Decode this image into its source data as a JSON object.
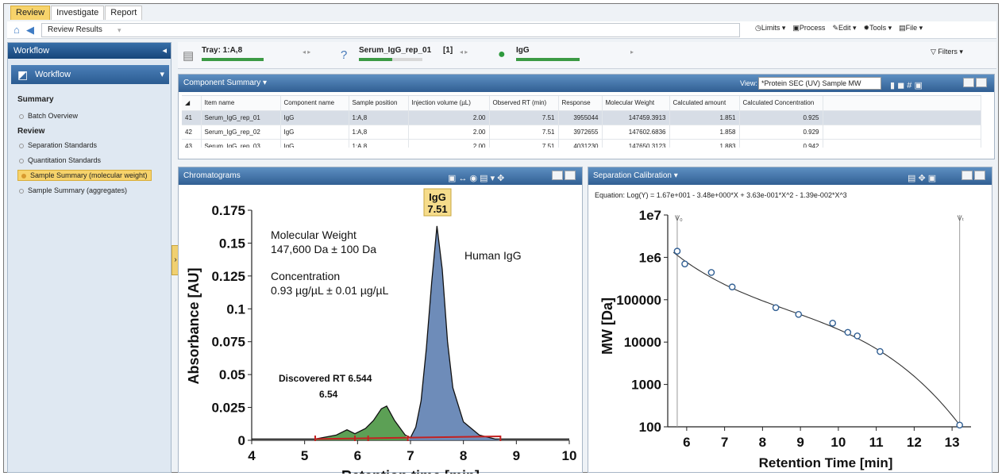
{
  "tabs": [
    "Review",
    "Investigate",
    "Report"
  ],
  "address": "Review Results",
  "top_actions": [
    "Limits",
    "Process",
    "Edit",
    "Tools",
    "File"
  ],
  "left": {
    "panel_title": "Workflow",
    "workflow_label": "Workflow",
    "sections": [
      {
        "title": "Summary",
        "items": [
          "Batch Overview"
        ]
      },
      {
        "title": "Review",
        "items": [
          "Separation Standards",
          "Quantitation Standards",
          "Sample Summary (molecular weight)",
          "Sample Summary (aggregates)"
        ]
      }
    ],
    "active_item": "Sample Summary (molecular weight)"
  },
  "status": {
    "tray": "Tray: 1:A,8",
    "sample": "Serum_IgG_rep_01",
    "sample_count": "[1]",
    "component": "IgG",
    "filters": "Filters"
  },
  "component_summary": {
    "title": "Component Summary",
    "view_label": "View:",
    "view_value": "*Protein SEC (UV) Sample MW",
    "columns": [
      "Item name",
      "Component name",
      "Sample position",
      "Injection volume (µL)",
      "Observed RT (min)",
      "Response",
      "Molecular Weight",
      "Calculated amount",
      "Calculated Concentration"
    ],
    "rows": [
      [
        "41",
        "Serum_IgG_rep_01",
        "IgG",
        "1:A,8",
        "2.00",
        "7.51",
        "3955044",
        "147459.3913",
        "1.851",
        "0.925"
      ],
      [
        "42",
        "Serum_IgG_rep_02",
        "IgG",
        "1:A,8",
        "2.00",
        "7.51",
        "3972655",
        "147602.6836",
        "1.858",
        "0.929"
      ],
      [
        "43",
        "Serum_IgG_rep_03",
        "IgG",
        "1:A,8",
        "2.00",
        "7.51",
        "4031230",
        "147650.3123",
        "1.883",
        "0.942"
      ]
    ]
  },
  "chromatograms": {
    "title": "Chromatograms",
    "peak_label": "IgG",
    "peak_rt": "7.51",
    "annotations": {
      "mw_title": "Molecular Weight",
      "mw_value": "147,600 Da ± 100 Da",
      "conc_title": "Concentration",
      "conc_value": "0.93 µg/µL ± 0.01 µg/µL",
      "species": "Human IgG",
      "discovered": "Discovered RT 6.544",
      "discovered_value": "6.54"
    }
  },
  "calibration": {
    "title": "Separation Calibration",
    "equation": "Equation: Log(Y) = 1.67e+001 - 3.48e+000*X + 3.63e-001*X^2 - 1.39e-002*X^3",
    "v0": "V₀",
    "vt": "Vₜ"
  },
  "chart_data": [
    {
      "type": "line",
      "title": "",
      "xlabel": "Retention time [min]",
      "ylabel": "Absorbance [AU]",
      "xlim": [
        4,
        10
      ],
      "ylim": [
        0,
        0.175
      ],
      "xticks": [
        4,
        5,
        6,
        7,
        8,
        9,
        10
      ],
      "yticks": [
        0,
        0.025,
        0.05,
        0.075,
        0.1,
        0.125,
        0.15,
        0.175
      ],
      "series": [
        {
          "x": [
            4.0,
            5.0,
            5.2,
            5.6,
            5.8,
            5.95,
            6.15,
            6.3,
            6.45,
            6.55,
            6.7,
            6.9,
            7.0,
            7.1,
            7.2,
            7.3,
            7.4,
            7.5,
            7.6,
            7.7,
            7.8,
            8.0,
            8.3,
            8.6,
            8.8,
            9.2,
            9.6,
            10.0
          ],
          "y": [
            0.001,
            0.001,
            0.001,
            0.004,
            0.008,
            0.005,
            0.009,
            0.015,
            0.024,
            0.026,
            0.015,
            0.004,
            0.002,
            0.01,
            0.03,
            0.07,
            0.12,
            0.163,
            0.13,
            0.075,
            0.04,
            0.014,
            0.004,
            0.001,
            0.001,
            0.001,
            0.001,
            0.001
          ]
        }
      ],
      "grid": false
    },
    {
      "type": "scatter",
      "title": "",
      "xlabel": "Retention Time [min]",
      "ylabel": "MW [Da]",
      "xlim": [
        5.5,
        13.5
      ],
      "ylim": [
        100,
        10000000
      ],
      "log_y": true,
      "xticks": [
        6,
        7,
        8,
        9,
        10,
        11,
        12,
        13
      ],
      "yticks": [
        "100",
        "1000",
        "10000",
        "100000",
        "1e6",
        "1e7"
      ],
      "points": [
        {
          "x": 5.75,
          "y": 1400000
        },
        {
          "x": 5.95,
          "y": 700000
        },
        {
          "x": 6.65,
          "y": 440000
        },
        {
          "x": 7.2,
          "y": 200000
        },
        {
          "x": 8.35,
          "y": 65000
        },
        {
          "x": 8.95,
          "y": 45000
        },
        {
          "x": 9.85,
          "y": 28000
        },
        {
          "x": 10.25,
          "y": 17000
        },
        {
          "x": 10.5,
          "y": 14000
        },
        {
          "x": 11.1,
          "y": 6000
        },
        {
          "x": 13.2,
          "y": 110
        }
      ],
      "grid": false
    }
  ]
}
